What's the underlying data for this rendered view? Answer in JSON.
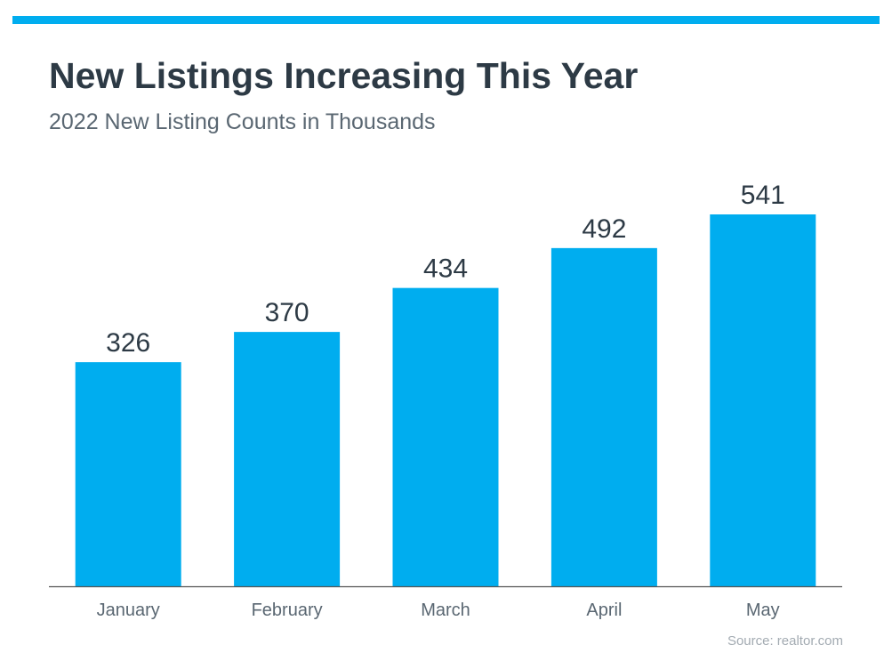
{
  "colors": {
    "accent": "#00adef",
    "title": "#2d3a45",
    "text": "#5a6772",
    "axis": "#555555",
    "source": "#a3abb2"
  },
  "header": {
    "title": "New Listings Increasing This Year",
    "subtitle": "2022 New Listing Counts in Thousands"
  },
  "footer": {
    "source": "Source: realtor.com"
  },
  "chart_data": {
    "type": "bar",
    "title": "New Listings Increasing This Year",
    "subtitle": "2022 New Listing Counts in Thousands",
    "categories": [
      "January",
      "February",
      "March",
      "April",
      "May"
    ],
    "series": [
      {
        "values": [
          326,
          370,
          434,
          492,
          541
        ]
      }
    ],
    "data_labels": [
      "326",
      "370",
      "434",
      "492",
      "541"
    ],
    "ylim": [
      0,
      600
    ],
    "grid": false,
    "legend": "none"
  }
}
